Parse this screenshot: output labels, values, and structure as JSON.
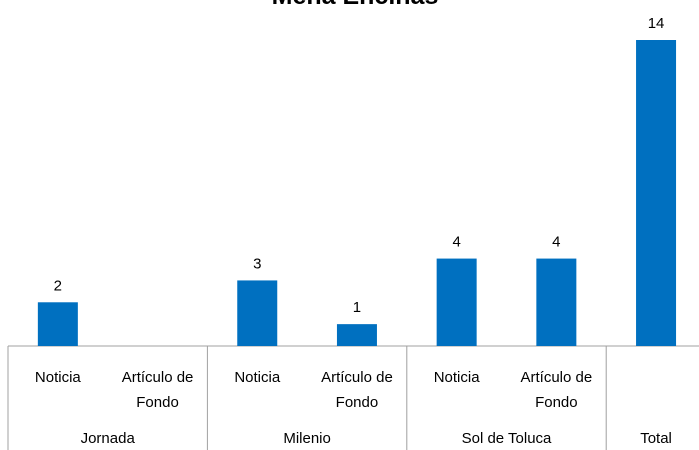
{
  "chart_data": {
    "type": "bar",
    "title": "Mena Encinas",
    "color": "#0070c0",
    "ylim": [
      0,
      14
    ],
    "groups": [
      {
        "name": "Jornada",
        "categories": [
          "Noticia",
          "Artículo de Fondo"
        ],
        "values": [
          2,
          null
        ]
      },
      {
        "name": "Milenio",
        "categories": [
          "Noticia",
          "Artículo de Fondo"
        ],
        "values": [
          3,
          1
        ]
      },
      {
        "name": "Sol de Toluca",
        "categories": [
          "Noticia",
          "Artículo de Fondo"
        ],
        "values": [
          4,
          4
        ]
      },
      {
        "name": "Total",
        "categories": [
          null
        ],
        "values": [
          14
        ]
      }
    ]
  }
}
